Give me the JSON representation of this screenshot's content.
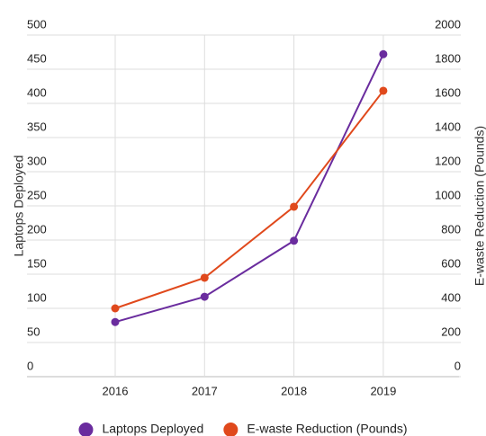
{
  "chart_data": {
    "type": "line",
    "categories": [
      "2016",
      "2017",
      "2018",
      "2019"
    ],
    "series": [
      {
        "name": "Laptops Deployed",
        "color": "#6a2c9e",
        "values": [
          80,
          117,
          199,
          472
        ]
      },
      {
        "name": "E-waste Reduction (Pounds)",
        "color": "#e0491c",
        "axis": "y2",
        "values": [
          400,
          579,
          995,
          1674
        ]
      }
    ],
    "ylabel": "Laptops Deployed",
    "y2label": "E-waste Reduction (Pounds)",
    "ylim": [
      0,
      500
    ],
    "yticks": [
      0,
      50,
      100,
      150,
      200,
      250,
      300,
      350,
      400,
      450,
      500
    ],
    "y2lim": [
      0,
      2000
    ],
    "y2ticks": [
      0,
      200,
      400,
      600,
      800,
      1000,
      1200,
      1400,
      1600,
      1800,
      2000
    ],
    "grid": true,
    "legend": "bottom"
  }
}
